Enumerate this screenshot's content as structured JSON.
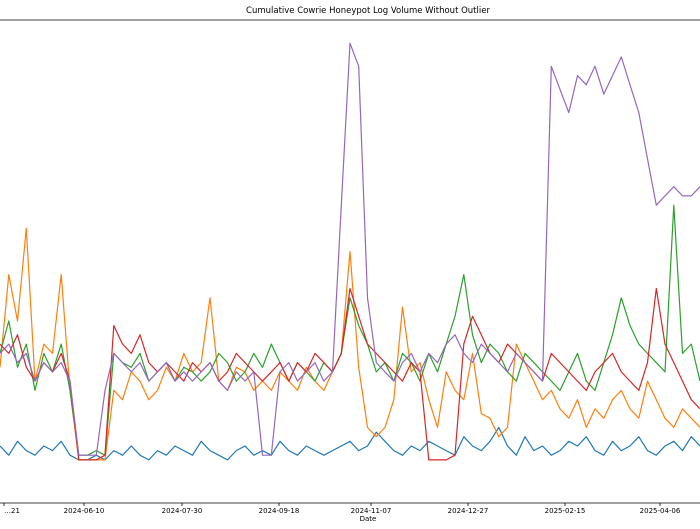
{
  "chart_data": {
    "type": "line",
    "title": "Cumulative Cowrie Honeypot Log Volume Without Outlier",
    "xlabel": "Date",
    "ylabel": "",
    "x_ticks": [
      "…21",
      "2024-06-10",
      "2024-07-30",
      "2024-09-18",
      "2024-11-07",
      "2024-12-27",
      "2025-02-15",
      "2025-04-06"
    ],
    "xlim_note": "x axis spans roughly mid-April 2024 to early May 2025, about 80 observations at ~5-day intervals",
    "ylim": [
      0,
      100
    ],
    "y_units": "relative (no y tick labels visible)",
    "grid": false,
    "legend": "none visible",
    "series": [
      {
        "color": "#1f77b4",
        "values": [
          8,
          6,
          9,
          7,
          6,
          8,
          7,
          9,
          6,
          5,
          5,
          6,
          5,
          7,
          6,
          8,
          6,
          5,
          7,
          6,
          8,
          7,
          6,
          9,
          7,
          6,
          5,
          7,
          8,
          6,
          7,
          6,
          9,
          7,
          6,
          8,
          7,
          6,
          7,
          8,
          9,
          7,
          8,
          11,
          9,
          7,
          6,
          8,
          7,
          9,
          8,
          7,
          6,
          10,
          8,
          7,
          9,
          12,
          8,
          6,
          10,
          7,
          8,
          6,
          7,
          9,
          8,
          10,
          7,
          6,
          9,
          7,
          8,
          10,
          7,
          6,
          8,
          9,
          7,
          10,
          8
        ]
      },
      {
        "color": "#ff7f0e",
        "values": [
          25,
          45,
          35,
          55,
          22,
          30,
          28,
          45,
          20,
          5,
          5,
          5,
          5,
          20,
          18,
          24,
          22,
          18,
          20,
          25,
          22,
          28,
          24,
          26,
          40,
          22,
          20,
          25,
          24,
          20,
          22,
          20,
          24,
          22,
          20,
          25,
          22,
          20,
          24,
          28,
          50,
          25,
          12,
          10,
          12,
          18,
          38,
          24,
          26,
          18,
          12,
          24,
          20,
          18,
          28,
          15,
          14,
          10,
          12,
          30,
          26,
          22,
          18,
          20,
          16,
          14,
          18,
          12,
          16,
          14,
          18,
          20,
          16,
          14,
          22,
          18,
          14,
          12,
          16,
          14,
          12
        ]
      },
      {
        "color": "#2ca02c",
        "values": [
          28,
          35,
          25,
          30,
          20,
          28,
          24,
          30,
          20,
          6,
          6,
          7,
          6,
          28,
          26,
          25,
          28,
          22,
          24,
          26,
          22,
          25,
          24,
          22,
          24,
          28,
          26,
          22,
          24,
          28,
          25,
          30,
          26,
          22,
          26,
          24,
          22,
          26,
          24,
          28,
          40,
          34,
          30,
          24,
          26,
          22,
          28,
          26,
          22,
          28,
          24,
          30,
          36,
          45,
          32,
          26,
          30,
          28,
          24,
          22,
          28,
          26,
          24,
          22,
          20,
          24,
          28,
          22,
          20,
          26,
          32,
          40,
          34,
          30,
          28,
          26,
          24,
          60,
          28,
          30,
          22
        ]
      },
      {
        "color": "#d62728",
        "values": [
          30,
          28,
          32,
          25,
          22,
          26,
          24,
          28,
          22,
          5,
          5,
          5,
          6,
          34,
          30,
          28,
          32,
          26,
          24,
          26,
          24,
          22,
          26,
          24,
          26,
          22,
          24,
          28,
          26,
          24,
          22,
          24,
          26,
          22,
          26,
          24,
          28,
          26,
          24,
          28,
          42,
          36,
          30,
          28,
          26,
          24,
          22,
          26,
          24,
          5,
          5,
          5,
          6,
          30,
          36,
          32,
          28,
          26,
          30,
          28,
          26,
          24,
          22,
          28,
          26,
          24,
          22,
          20,
          24,
          26,
          28,
          24,
          22,
          20,
          26,
          42,
          30,
          26,
          22,
          18,
          16
        ]
      },
      {
        "color": "#9467bd",
        "values": [
          28,
          30,
          26,
          28,
          22,
          26,
          24,
          26,
          22,
          6,
          6,
          6,
          20,
          28,
          26,
          24,
          26,
          22,
          24,
          26,
          22,
          24,
          22,
          24,
          26,
          22,
          20,
          24,
          22,
          24,
          6,
          6,
          24,
          26,
          22,
          24,
          26,
          22,
          24,
          60,
          95,
          90,
          40,
          26,
          24,
          22,
          26,
          28,
          24,
          28,
          26,
          30,
          32,
          28,
          26,
          30,
          28,
          26,
          24,
          28,
          26,
          24,
          22,
          90,
          85,
          80,
          88,
          86,
          90,
          84,
          88,
          92,
          86,
          80,
          70,
          60,
          62,
          64,
          62,
          62,
          64
        ]
      }
    ]
  }
}
